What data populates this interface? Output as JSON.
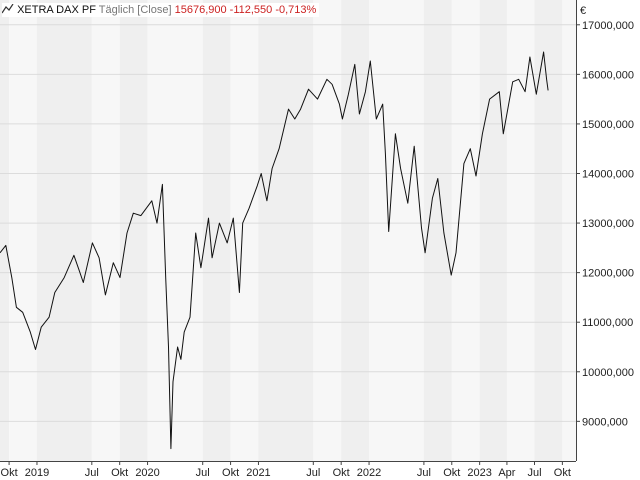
{
  "header": {
    "icon": "line-chart-icon",
    "symbol": "XETRA DAX PF",
    "interval": "Täglich [Close]",
    "last": "15676,900",
    "change": "-112,550",
    "change_pct": "-0,713%",
    "change_color": "#cc2222"
  },
  "chart_data": {
    "type": "line",
    "currency_label": "€",
    "grid": true,
    "x_domain": [
      "2018-09-01",
      "2023-11-15"
    ],
    "y_domain": [
      8200,
      17500
    ],
    "y_ticks": [
      {
        "value": 9000,
        "label": "9000,000"
      },
      {
        "value": 10000,
        "label": "10000,000"
      },
      {
        "value": 11000,
        "label": "11000,000"
      },
      {
        "value": 12000,
        "label": "12000,000"
      },
      {
        "value": 13000,
        "label": "13000,000"
      },
      {
        "value": 14000,
        "label": "14000,000"
      },
      {
        "value": 15000,
        "label": "15000,000"
      },
      {
        "value": 16000,
        "label": "16000,000"
      },
      {
        "value": 17000,
        "label": "17000,000"
      }
    ],
    "x_ticks": [
      {
        "date": "2018-10-01",
        "label": "Okt"
      },
      {
        "date": "2019-01-01",
        "label": "2019"
      },
      {
        "date": "2019-07-01",
        "label": "Jul"
      },
      {
        "date": "2019-10-01",
        "label": "Okt"
      },
      {
        "date": "2020-01-01",
        "label": "2020"
      },
      {
        "date": "2020-07-01",
        "label": "Jul"
      },
      {
        "date": "2020-10-01",
        "label": "Okt"
      },
      {
        "date": "2021-01-01",
        "label": "2021"
      },
      {
        "date": "2021-07-01",
        "label": "Jul"
      },
      {
        "date": "2021-10-01",
        "label": "Okt"
      },
      {
        "date": "2022-01-01",
        "label": "2022"
      },
      {
        "date": "2022-07-01",
        "label": "Jul"
      },
      {
        "date": "2022-10-01",
        "label": "Okt"
      },
      {
        "date": "2023-01-01",
        "label": "2023"
      },
      {
        "date": "2023-04-01",
        "label": "Apr"
      },
      {
        "date": "2023-07-01",
        "label": "Jul"
      },
      {
        "date": "2023-10-01",
        "label": "Okt"
      }
    ],
    "series": [
      {
        "color": "#111111",
        "points": [
          [
            "2018-09-01",
            12400
          ],
          [
            "2018-09-20",
            12550
          ],
          [
            "2018-10-10",
            11900
          ],
          [
            "2018-10-25",
            11300
          ],
          [
            "2018-11-15",
            11200
          ],
          [
            "2018-12-10",
            10800
          ],
          [
            "2018-12-27",
            10450
          ],
          [
            "2019-01-15",
            10900
          ],
          [
            "2019-02-10",
            11100
          ],
          [
            "2019-03-01",
            11600
          ],
          [
            "2019-04-01",
            11900
          ],
          [
            "2019-05-03",
            12350
          ],
          [
            "2019-05-20",
            12050
          ],
          [
            "2019-06-03",
            11800
          ],
          [
            "2019-07-03",
            12600
          ],
          [
            "2019-07-25",
            12300
          ],
          [
            "2019-08-15",
            11550
          ],
          [
            "2019-09-10",
            12200
          ],
          [
            "2019-10-02",
            11900
          ],
          [
            "2019-10-25",
            12800
          ],
          [
            "2019-11-15",
            13200
          ],
          [
            "2019-12-10",
            13150
          ],
          [
            "2020-01-15",
            13450
          ],
          [
            "2020-02-01",
            13000
          ],
          [
            "2020-02-19",
            13780
          ],
          [
            "2020-03-01",
            11900
          ],
          [
            "2020-03-10",
            10500
          ],
          [
            "2020-03-18",
            8450
          ],
          [
            "2020-03-25",
            9800
          ],
          [
            "2020-04-09",
            10500
          ],
          [
            "2020-04-20",
            10250
          ],
          [
            "2020-05-01",
            10800
          ],
          [
            "2020-05-20",
            11100
          ],
          [
            "2020-06-08",
            12800
          ],
          [
            "2020-06-25",
            12100
          ],
          [
            "2020-07-20",
            13100
          ],
          [
            "2020-08-01",
            12300
          ],
          [
            "2020-08-25",
            13000
          ],
          [
            "2020-09-20",
            12600
          ],
          [
            "2020-10-10",
            13100
          ],
          [
            "2020-10-30",
            11600
          ],
          [
            "2020-11-10",
            13000
          ],
          [
            "2020-12-01",
            13300
          ],
          [
            "2020-12-28",
            13750
          ],
          [
            "2021-01-10",
            14000
          ],
          [
            "2021-01-29",
            13450
          ],
          [
            "2021-02-15",
            14100
          ],
          [
            "2021-03-10",
            14500
          ],
          [
            "2021-04-10",
            15300
          ],
          [
            "2021-05-01",
            15100
          ],
          [
            "2021-05-20",
            15300
          ],
          [
            "2021-06-15",
            15700
          ],
          [
            "2021-07-15",
            15500
          ],
          [
            "2021-08-15",
            15900
          ],
          [
            "2021-09-01",
            15800
          ],
          [
            "2021-09-25",
            15400
          ],
          [
            "2021-10-05",
            15100
          ],
          [
            "2021-10-25",
            15600
          ],
          [
            "2021-11-15",
            16200
          ],
          [
            "2021-11-30",
            15200
          ],
          [
            "2021-12-20",
            15650
          ],
          [
            "2022-01-05",
            16270
          ],
          [
            "2022-01-25",
            15100
          ],
          [
            "2022-02-15",
            15400
          ],
          [
            "2022-02-24",
            14400
          ],
          [
            "2022-03-07",
            12830
          ],
          [
            "2022-03-29",
            14800
          ],
          [
            "2022-04-15",
            14100
          ],
          [
            "2022-05-09",
            13400
          ],
          [
            "2022-05-30",
            14550
          ],
          [
            "2022-06-23",
            12900
          ],
          [
            "2022-07-05",
            12400
          ],
          [
            "2022-07-29",
            13500
          ],
          [
            "2022-08-16",
            13900
          ],
          [
            "2022-09-05",
            12800
          ],
          [
            "2022-09-29",
            11950
          ],
          [
            "2022-10-15",
            12400
          ],
          [
            "2022-11-10",
            14200
          ],
          [
            "2022-12-01",
            14500
          ],
          [
            "2022-12-20",
            13950
          ],
          [
            "2023-01-10",
            14800
          ],
          [
            "2023-02-03",
            15500
          ],
          [
            "2023-03-07",
            15650
          ],
          [
            "2023-03-20",
            14800
          ],
          [
            "2023-04-20",
            15850
          ],
          [
            "2023-05-10",
            15900
          ],
          [
            "2023-05-31",
            15650
          ],
          [
            "2023-06-16",
            16350
          ],
          [
            "2023-07-07",
            15600
          ],
          [
            "2023-07-31",
            16450
          ],
          [
            "2023-08-10",
            15900
          ],
          [
            "2023-08-15",
            15676.9
          ]
        ]
      }
    ]
  }
}
